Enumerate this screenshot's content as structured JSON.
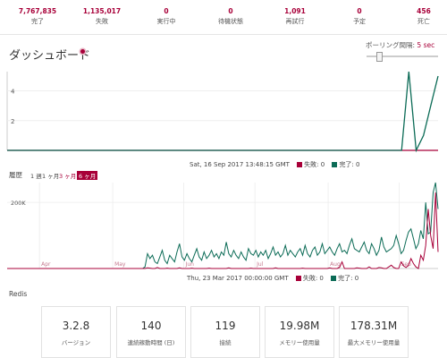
{
  "stats": [
    {
      "value": "7,767,835",
      "label": "完了"
    },
    {
      "value": "1,135,017",
      "label": "失敗"
    },
    {
      "value": "0",
      "label": "実行中"
    },
    {
      "value": "0",
      "label": "待機状態"
    },
    {
      "value": "1,091",
      "label": "再試行"
    },
    {
      "value": "0",
      "label": "予定"
    },
    {
      "value": "456",
      "label": "死亡"
    }
  ],
  "dashboard": {
    "title": "ダッシュボード",
    "polling_label": "ポーリング間隔:",
    "polling_value": "5 sec",
    "polling_fraction": 0.15
  },
  "colors": {
    "accent": "#a80039",
    "failed": "#a80039",
    "processed": "#0b6b56",
    "grid": "#e0e0e0"
  },
  "realtime": {
    "tooltip_time": "Sat, 16 Sep 2017 13:48:15 GMT",
    "failed_label": "失敗: 0",
    "processed_label": "完了: 0"
  },
  "history": {
    "title": "履歴",
    "ranges": [
      "1 週",
      "1 ヶ月",
      "3 ヶ月",
      "6 ヶ月"
    ],
    "active_range": "6 ヶ月",
    "tooltip_time": "Thu, 23 Mar 2017 00:00:00 GMT",
    "failed_label": "失敗: 0",
    "processed_label": "完了: 0"
  },
  "redis": {
    "title": "Redis",
    "cards": [
      {
        "value": "3.2.8",
        "label": "バージョン"
      },
      {
        "value": "140",
        "label": "連続稼動時間 (日)"
      },
      {
        "value": "119",
        "label": "接続"
      },
      {
        "value": "19.98M",
        "label": "メモリー使用量"
      },
      {
        "value": "178.31M",
        "label": "最大メモリー使用量"
      }
    ]
  },
  "chart_data": [
    {
      "type": "line",
      "title": "ダッシュボード",
      "yticks": [
        2,
        4
      ],
      "ylim": [
        0,
        5.3
      ],
      "x": [
        0,
        1,
        2,
        3,
        4,
        5,
        6,
        7,
        8,
        9,
        10,
        11,
        12,
        13,
        14,
        15,
        16,
        17,
        18,
        19,
        20,
        21,
        22,
        23,
        24,
        25,
        26,
        27,
        28,
        29,
        30,
        31,
        32,
        33,
        34,
        35,
        36,
        37,
        38,
        39,
        40,
        41,
        42,
        43,
        44,
        45,
        46,
        47,
        48,
        49,
        50,
        51,
        52,
        53,
        54,
        55,
        56,
        57,
        58,
        59
      ],
      "series": [
        {
          "name": "失敗",
          "values": [
            0,
            0,
            0,
            0,
            0,
            0,
            0,
            0,
            0,
            0,
            0,
            0,
            0,
            0,
            0,
            0,
            0,
            0,
            0,
            0,
            0,
            0,
            0,
            0,
            0,
            0,
            0,
            0,
            0,
            0,
            0,
            0,
            0,
            0,
            0,
            0,
            0,
            0,
            0,
            0,
            0,
            0,
            0,
            0,
            0,
            0,
            0,
            0,
            0,
            0,
            0,
            0,
            0,
            0,
            0,
            0,
            0,
            0,
            0,
            0
          ]
        },
        {
          "name": "完了",
          "values": [
            0,
            0,
            0,
            0,
            0,
            0,
            0,
            0,
            0,
            0,
            0,
            0,
            0,
            0,
            0,
            0,
            0,
            0,
            0,
            0,
            0,
            0,
            0,
            0,
            0,
            0,
            0,
            0,
            0,
            0,
            0,
            0,
            0,
            0,
            0,
            0,
            0,
            0,
            0,
            0,
            0,
            0,
            0,
            0,
            0,
            0,
            0,
            0,
            0,
            0,
            0,
            0,
            0,
            0,
            0,
            5.3,
            0,
            1,
            3,
            5
          ]
        }
      ]
    },
    {
      "type": "line",
      "title": "履歴",
      "xticks": [
        "Apr",
        "May",
        "Jun",
        "Jul",
        "Aug",
        "Sep"
      ],
      "yticks": [
        "200K"
      ],
      "ylim": [
        0,
        260000
      ],
      "x_range": [
        "2017-03-19",
        "2017-09-16"
      ],
      "series": [
        {
          "name": "完了",
          "values": [
            0,
            0,
            0,
            0,
            0,
            0,
            0,
            0,
            0,
            0,
            0,
            0,
            0,
            0,
            0,
            0,
            0,
            0,
            0,
            0,
            0,
            0,
            0,
            0,
            0,
            0,
            0,
            0,
            0,
            0,
            0,
            0,
            0,
            0,
            0,
            0,
            0,
            0,
            0,
            0,
            0,
            0,
            0,
            0,
            0,
            0,
            0,
            0,
            0,
            0,
            0,
            0,
            0,
            0,
            0,
            0,
            5000,
            45000,
            30000,
            40000,
            20000,
            15000,
            35000,
            55000,
            25000,
            15000,
            40000,
            30000,
            20000,
            50000,
            75000,
            35000,
            25000,
            45000,
            30000,
            20000,
            40000,
            60000,
            35000,
            25000,
            50000,
            30000,
            40000,
            55000,
            35000,
            45000,
            30000,
            50000,
            40000,
            80000,
            45000,
            35000,
            55000,
            40000,
            30000,
            50000,
            35000,
            25000,
            60000,
            45000,
            40000,
            55000,
            35000,
            50000,
            40000,
            55000,
            30000,
            45000,
            65000,
            40000,
            50000,
            35000,
            45000,
            70000,
            40000,
            55000,
            45000,
            35000,
            50000,
            60000,
            40000,
            70000,
            45000,
            35000,
            55000,
            65000,
            40000,
            50000,
            75000,
            45000,
            55000,
            65000,
            50000,
            40000,
            60000,
            75000,
            50000,
            55000,
            45000,
            70000,
            90000,
            60000,
            55000,
            50000,
            65000,
            80000,
            55000,
            45000,
            75000,
            60000,
            40000,
            55000,
            95000,
            65000,
            50000,
            55000,
            60000,
            70000,
            100000,
            75000,
            45000,
            55000,
            85000,
            110000,
            120000,
            90000,
            60000,
            75000,
            115000,
            90000,
            200000,
            105000,
            110000,
            230000,
            260000,
            180000
          ]
        },
        {
          "name": "失敗",
          "values": [
            0,
            0,
            0,
            0,
            0,
            0,
            0,
            0,
            0,
            0,
            0,
            0,
            0,
            0,
            0,
            0,
            0,
            0,
            0,
            0,
            0,
            0,
            0,
            0,
            0,
            0,
            0,
            0,
            0,
            0,
            0,
            0,
            0,
            0,
            0,
            0,
            0,
            0,
            0,
            0,
            0,
            0,
            0,
            0,
            0,
            0,
            0,
            0,
            0,
            0,
            0,
            0,
            0,
            0,
            0,
            0,
            0,
            2000,
            1000,
            0,
            0,
            3000,
            0,
            0,
            0,
            1000,
            0,
            0,
            0,
            0,
            2000,
            0,
            0,
            0,
            0,
            1000,
            0,
            0,
            0,
            0,
            0,
            0,
            1000,
            0,
            0,
            0,
            0,
            0,
            0,
            0,
            2000,
            0,
            0,
            0,
            0,
            0,
            0,
            0,
            0,
            1000,
            0,
            0,
            0,
            0,
            0,
            0,
            0,
            0,
            0,
            2000,
            0,
            0,
            0,
            0,
            0,
            0,
            0,
            0,
            0,
            0,
            1000,
            0,
            0,
            0,
            0,
            0,
            0,
            0,
            0,
            0,
            0,
            2000,
            0,
            0,
            0,
            3000,
            20000,
            0,
            0,
            0,
            0,
            0,
            2000,
            1000,
            0,
            0,
            0,
            5000,
            0,
            0,
            0,
            3000,
            2000,
            0,
            0,
            5000,
            10000,
            3000,
            0,
            0,
            20000,
            8000,
            3000,
            10000,
            30000,
            15000,
            5000,
            0,
            40000,
            25000,
            70000,
            180000,
            100000,
            60000,
            230000,
            50000
          ]
        }
      ]
    }
  ]
}
